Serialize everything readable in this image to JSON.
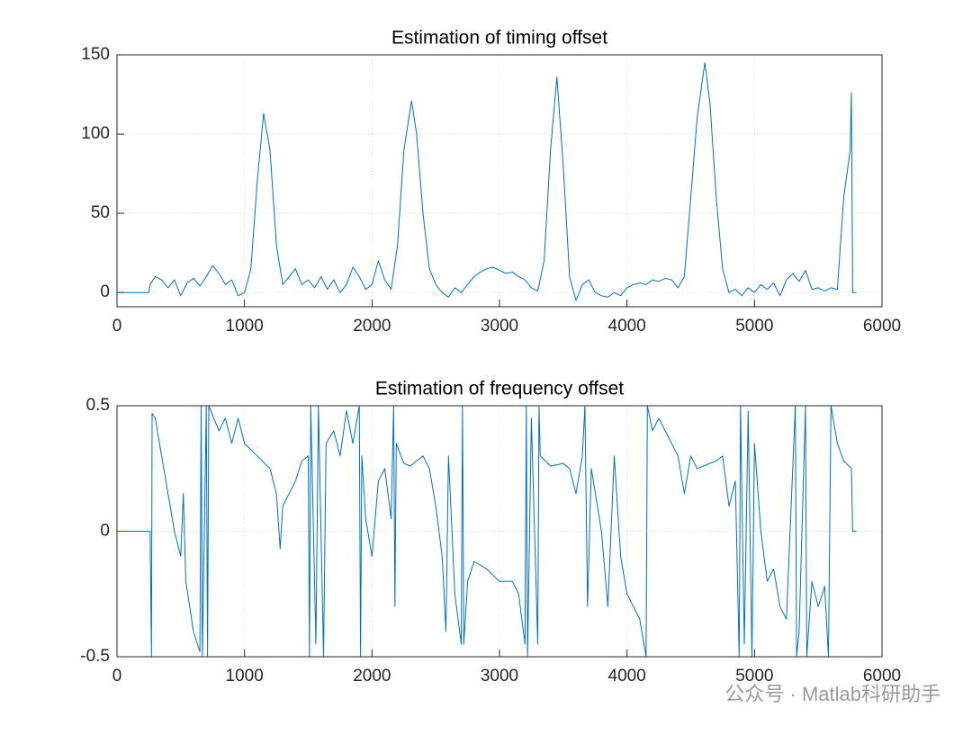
{
  "chart_data": [
    {
      "type": "line",
      "title": "Estimation of timing offset",
      "xlim": [
        0,
        6000
      ],
      "ylim": [
        -9,
        150
      ],
      "xticks": [
        0,
        1000,
        2000,
        3000,
        4000,
        5000,
        6000
      ],
      "yticks": [
        0,
        50,
        100,
        150
      ],
      "grid": true,
      "series": [
        {
          "color": "#0072bd",
          "x": [
            0,
            250,
            260,
            300,
            350,
            400,
            450,
            500,
            550,
            600,
            650,
            700,
            750,
            800,
            850,
            900,
            950,
            1000,
            1050,
            1100,
            1150,
            1200,
            1250,
            1300,
            1350,
            1400,
            1450,
            1500,
            1550,
            1600,
            1650,
            1700,
            1750,
            1800,
            1850,
            1900,
            1950,
            2000,
            2050,
            2100,
            2150,
            2200,
            2250,
            2310,
            2350,
            2400,
            2450,
            2500,
            2550,
            2600,
            2650,
            2700,
            2750,
            2800,
            2850,
            2900,
            2950,
            3000,
            3050,
            3100,
            3150,
            3200,
            3250,
            3300,
            3350,
            3400,
            3450,
            3500,
            3550,
            3600,
            3650,
            3700,
            3750,
            3800,
            3850,
            3900,
            3950,
            4000,
            4050,
            4100,
            4150,
            4200,
            4250,
            4300,
            4350,
            4400,
            4450,
            4500,
            4550,
            4610,
            4650,
            4700,
            4750,
            4800,
            4850,
            4900,
            4950,
            5000,
            5050,
            5100,
            5150,
            5200,
            5250,
            5300,
            5350,
            5400,
            5450,
            5500,
            5550,
            5600,
            5650,
            5700,
            5750,
            5760,
            5770,
            5800
          ],
          "values": [
            0,
            0,
            5,
            10,
            8,
            3,
            8,
            -2,
            6,
            9,
            4,
            10,
            17,
            12,
            5,
            8,
            -2,
            0,
            15,
            70,
            113,
            90,
            30,
            5,
            10,
            15,
            5,
            8,
            3,
            10,
            2,
            8,
            0,
            5,
            16,
            10,
            2,
            5,
            20,
            8,
            2,
            30,
            90,
            121,
            100,
            50,
            15,
            5,
            0,
            -3,
            3,
            0,
            5,
            10,
            13,
            15,
            16,
            14,
            12,
            13,
            10,
            8,
            3,
            1,
            20,
            90,
            136,
            80,
            10,
            -5,
            5,
            8,
            0,
            -2,
            -3,
            0,
            -2,
            3,
            5,
            6,
            5,
            8,
            7,
            9,
            8,
            3,
            10,
            60,
            110,
            145,
            120,
            60,
            15,
            0,
            2,
            -2,
            3,
            0,
            5,
            2,
            6,
            -2,
            8,
            12,
            7,
            14,
            2,
            3,
            1,
            3,
            2,
            60,
            90,
            126,
            0,
            0
          ]
        }
      ]
    },
    {
      "type": "line",
      "title": "Estimation of frequency offset",
      "xlim": [
        0,
        6000
      ],
      "ylim": [
        -0.5,
        0.5
      ],
      "xticks": [
        0,
        1000,
        2000,
        3000,
        4000,
        5000,
        6000
      ],
      "yticks": [
        -0.5,
        0,
        0.5
      ],
      "grid": true,
      "series": [
        {
          "color": "#0072bd",
          "x": [
            0,
            260,
            270,
            275,
            300,
            350,
            400,
            450,
            500,
            520,
            540,
            600,
            650,
            660,
            670,
            700,
            710,
            720,
            800,
            850,
            900,
            950,
            1000,
            1100,
            1200,
            1250,
            1280,
            1300,
            1400,
            1450,
            1500,
            1510,
            1520,
            1560,
            1580,
            1620,
            1640,
            1700,
            1750,
            1800,
            1850,
            1900,
            1910,
            1920,
            1950,
            2000,
            2050,
            2100,
            2150,
            2170,
            2180,
            2190,
            2250,
            2300,
            2400,
            2450,
            2500,
            2550,
            2580,
            2600,
            2650,
            2700,
            2710,
            2720,
            2750,
            2800,
            2900,
            3000,
            3100,
            3150,
            3200,
            3210,
            3220,
            3250,
            3300,
            3310,
            3320,
            3400,
            3500,
            3550,
            3600,
            3650,
            3670,
            3690,
            3720,
            3800,
            3850,
            3900,
            3950,
            4000,
            4100,
            4150,
            4160,
            4200,
            4250,
            4300,
            4400,
            4450,
            4500,
            4550,
            4600,
            4700,
            4750,
            4800,
            4850,
            4880,
            4890,
            4920,
            4950,
            4980,
            5000,
            5050,
            5100,
            5150,
            5200,
            5250,
            5300,
            5320,
            5330,
            5350,
            5400,
            5410,
            5450,
            5500,
            5550,
            5580,
            5600,
            5650,
            5700,
            5760,
            5770,
            5800
          ],
          "values": [
            0,
            0,
            -0.5,
            0.47,
            0.45,
            0.3,
            0.15,
            0,
            -0.1,
            0.15,
            -0.2,
            -0.4,
            -0.48,
            0.5,
            -0.5,
            0.5,
            -0.5,
            0.5,
            0.4,
            0.45,
            0.35,
            0.45,
            0.35,
            0.3,
            0.25,
            0.15,
            -0.07,
            0.1,
            0.2,
            0.28,
            0.3,
            -0.5,
            0.5,
            -0.45,
            0.5,
            -0.5,
            0.35,
            0.4,
            0.3,
            0.48,
            0.35,
            0.5,
            -0.5,
            0.3,
            0.05,
            -0.1,
            0.2,
            0.25,
            0.05,
            0.5,
            -0.3,
            0.35,
            0.27,
            0.26,
            0.3,
            0.25,
            0.1,
            -0.1,
            -0.4,
            0.3,
            -0.25,
            -0.45,
            0.5,
            -0.45,
            -0.2,
            -0.12,
            -0.15,
            -0.2,
            -0.2,
            -0.25,
            -0.45,
            0.5,
            -0.5,
            0.45,
            -0.45,
            0.5,
            0.3,
            0.26,
            0.27,
            0.25,
            0.15,
            0.3,
            0.5,
            -0.3,
            0.25,
            0,
            -0.3,
            0.3,
            -0.1,
            -0.25,
            -0.35,
            -0.5,
            0.5,
            0.4,
            0.45,
            0.4,
            0.3,
            0.15,
            0.3,
            0.25,
            0.26,
            0.28,
            0.3,
            0.1,
            0.2,
            -0.5,
            0.5,
            -0.45,
            0.48,
            -0.5,
            0.35,
            0,
            -0.2,
            -0.15,
            -0.3,
            -0.35,
            0.25,
            0.5,
            -0.5,
            -0.4,
            0.5,
            -0.5,
            -0.2,
            -0.3,
            -0.22,
            -0.5,
            0.5,
            0.35,
            0.28,
            0.25,
            0,
            0
          ]
        }
      ]
    }
  ],
  "watermark": "公众号 · Matlab科研助手"
}
